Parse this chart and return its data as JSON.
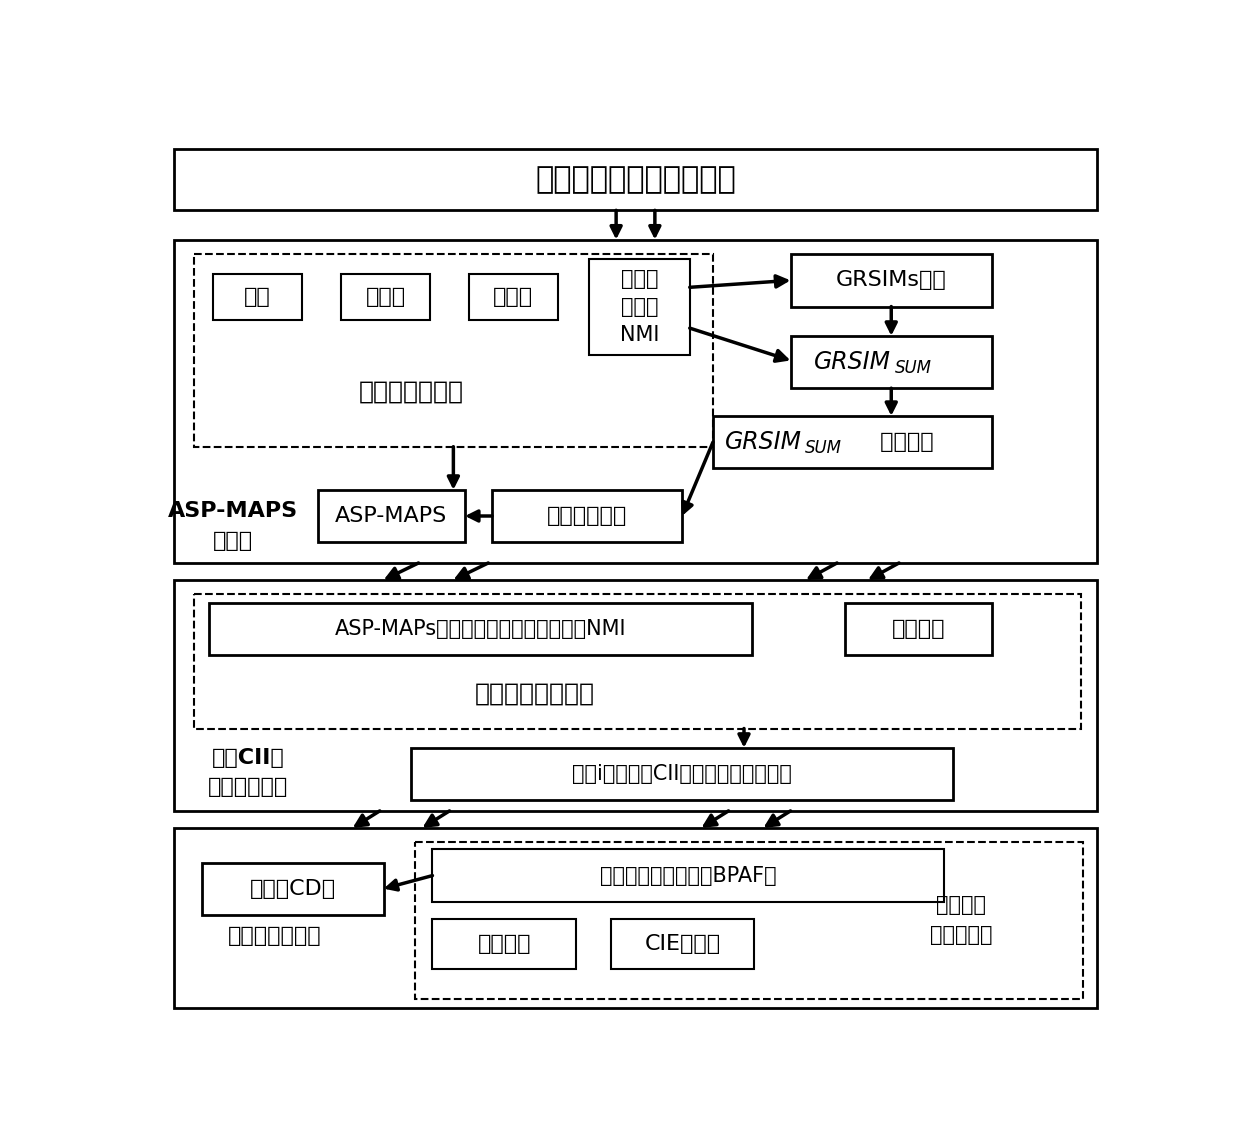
{
  "bg_color": "#ffffff",
  "title": "多时相高分辨率遥感影像",
  "s1_small": [
    "面积",
    "对角线",
    "标准差"
  ],
  "s1_nmi": "归一化\n惯性矩\nNMI",
  "s1_grrsims": "GRSIMs提取",
  "s1_grsimsum_label": "GRSIM",
  "s1_grsimsum_sub": "SUM",
  "s1_min_label": "GRSIM",
  "s1_min_sub": "SUM",
  "s1_min_suffix": " 的最小值",
  "s1_best_scale": "最优尺度集合",
  "s1_asp_maps": "ASP-MAPS",
  "s1_dashed_label": "所采用的属性集",
  "s1_section_label": "ASP-MAPS\n的构建",
  "s2_left": "ASP-MAPs的面积、对角线、标准差、NMI",
  "s2_right": "原始波段",
  "s2_dashed_label": "五组差分图像集合",
  "s2_pixel": "像素i基于五组CII集合的变化信息描述",
  "s2_section_label": "基于CII的\n变化信息描述",
  "s3_cd": "最终的CD图",
  "s3_bpaf": "基本概率分配公式（BPAF）",
  "s3_decision": "决策融合",
  "s3_cie": "CIE的计算",
  "s3_section_label": "多特征决策融合",
  "s3_right_label": "决策融合\n框架的实现"
}
